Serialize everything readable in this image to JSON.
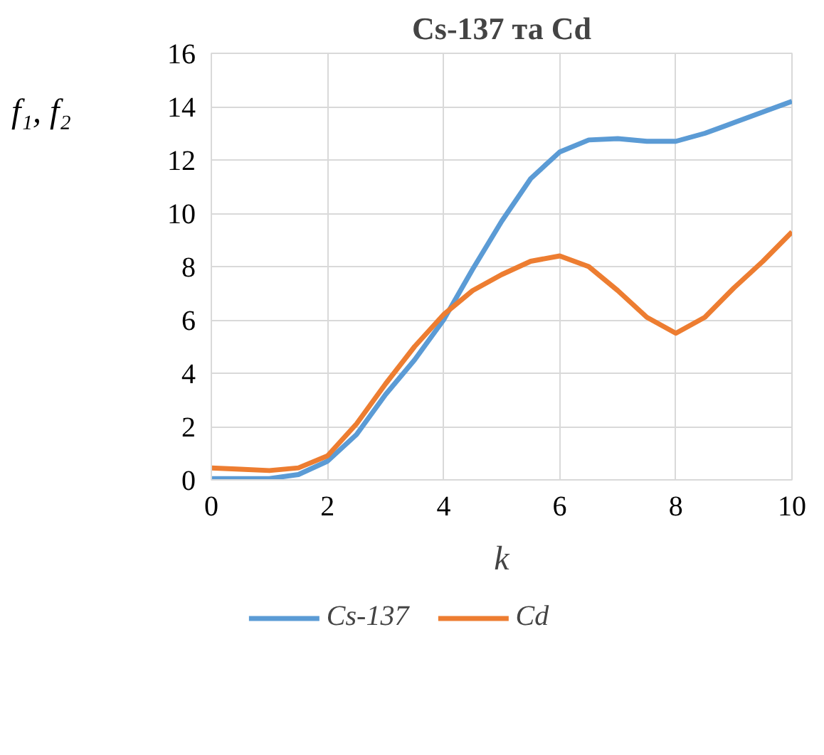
{
  "chart_data": {
    "type": "line",
    "title": "Cs-137 та Cd",
    "xlabel": "k",
    "ylabel": "f₁, f₂",
    "x": [
      0,
      0.5,
      1,
      1.5,
      2,
      2.5,
      3,
      3.5,
      4,
      4.5,
      5,
      5.5,
      6,
      6.5,
      7,
      7.5,
      8,
      8.5,
      9,
      9.5,
      10
    ],
    "series": [
      {
        "name": "Cs-137",
        "color": "#5b9bd5",
        "values": [
          0.05,
          0.05,
          0.05,
          0.2,
          0.7,
          1.7,
          3.2,
          4.5,
          6.0,
          7.9,
          9.7,
          11.3,
          12.3,
          12.75,
          12.8,
          12.7,
          12.7,
          13.0,
          13.4,
          13.8,
          14.2
        ]
      },
      {
        "name": "Cd",
        "color": "#ed7d31",
        "values": [
          0.45,
          0.4,
          0.35,
          0.45,
          0.9,
          2.1,
          3.6,
          5.0,
          6.2,
          7.1,
          7.7,
          8.2,
          8.4,
          8.0,
          7.1,
          6.1,
          5.5,
          6.1,
          7.2,
          8.2,
          9.3
        ]
      }
    ],
    "xlim": [
      0,
      10
    ],
    "xticks": [
      0,
      2,
      4,
      6,
      8,
      10
    ],
    "ylim": [
      0,
      16
    ],
    "yticks": [
      0,
      2,
      4,
      6,
      8,
      10,
      12,
      14,
      16
    ],
    "grid": true,
    "legend": "bottom",
    "marker": "none",
    "line_style": "solid"
  }
}
